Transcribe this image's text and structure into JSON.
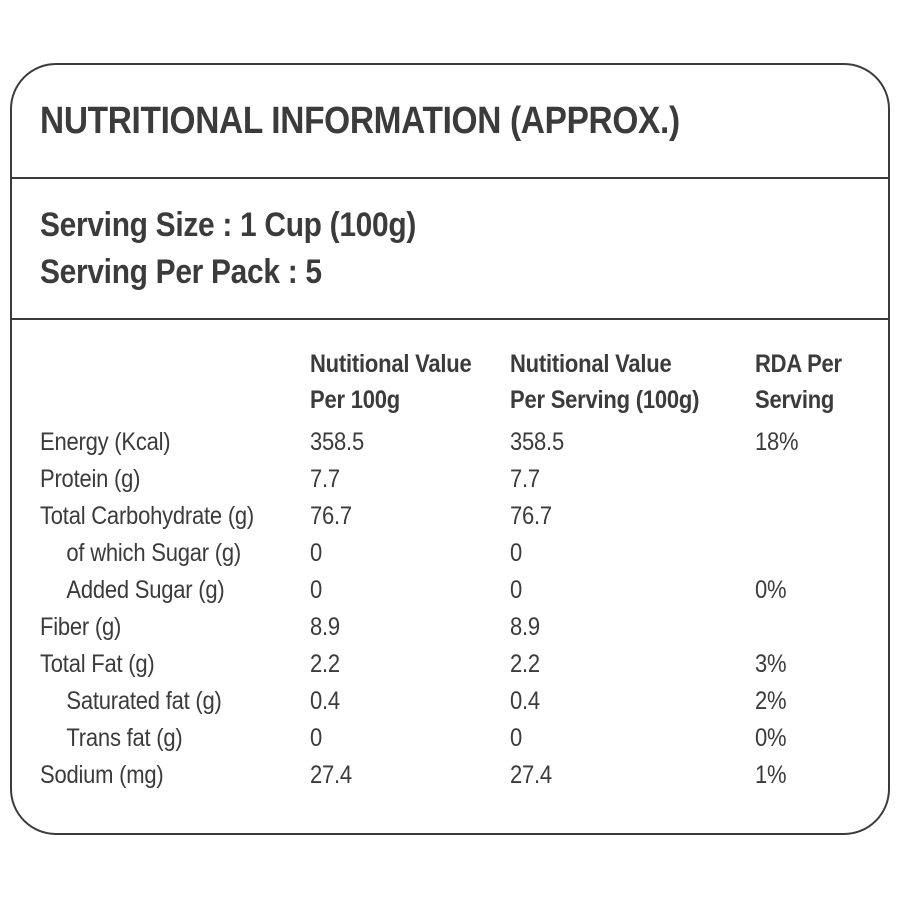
{
  "colors": {
    "text": "#3b3b3b",
    "border": "#3b3b3b",
    "background": "#ffffff"
  },
  "title": "NUTRITIONAL INFORMATION (APPROX.)",
  "serving": {
    "line1": "Serving Size : 1 Cup (100g)",
    "line2": "Serving Per Pack : 5"
  },
  "table": {
    "headers": {
      "col2": {
        "line1": "Nutitional Value",
        "line2": "Per 100g"
      },
      "col3": {
        "line1": "Nutitional Value",
        "line2": "Per Serving (100g)"
      },
      "col4": {
        "line1": "RDA Per",
        "line2": "Serving"
      }
    },
    "rows": [
      {
        "label": "Energy (Kcal)",
        "per_100g": "358.5",
        "per_serving": "358.5",
        "rda": "18%"
      },
      {
        "label": "Protein (g)",
        "per_100g": "7.7",
        "per_serving": "7.7",
        "rda": ""
      },
      {
        "label": "Total Carbohydrate (g)",
        "per_100g": "76.7",
        "per_serving": "76.7",
        "rda": ""
      },
      {
        "label": "of which Sugar (g)",
        "per_100g": "0",
        "per_serving": "0",
        "rda": ""
      },
      {
        "label": "Added Sugar (g)",
        "per_100g": "0",
        "per_serving": "0",
        "rda": "0%"
      },
      {
        "label": "Fiber (g)",
        "per_100g": "8.9",
        "per_serving": "8.9",
        "rda": ""
      },
      {
        "label": "Total Fat (g)",
        "per_100g": "2.2",
        "per_serving": "2.2",
        "rda": "3%"
      },
      {
        "label": "Saturated fat (g)",
        "per_100g": "0.4",
        "per_serving": "0.4",
        "rda": "2%"
      },
      {
        "label": "Trans fat (g)",
        "per_100g": "0",
        "per_serving": "0",
        "rda": "0%"
      },
      {
        "label": "Sodium (mg)",
        "per_100g": "27.4",
        "per_serving": "27.4",
        "rda": "1%"
      }
    ]
  }
}
